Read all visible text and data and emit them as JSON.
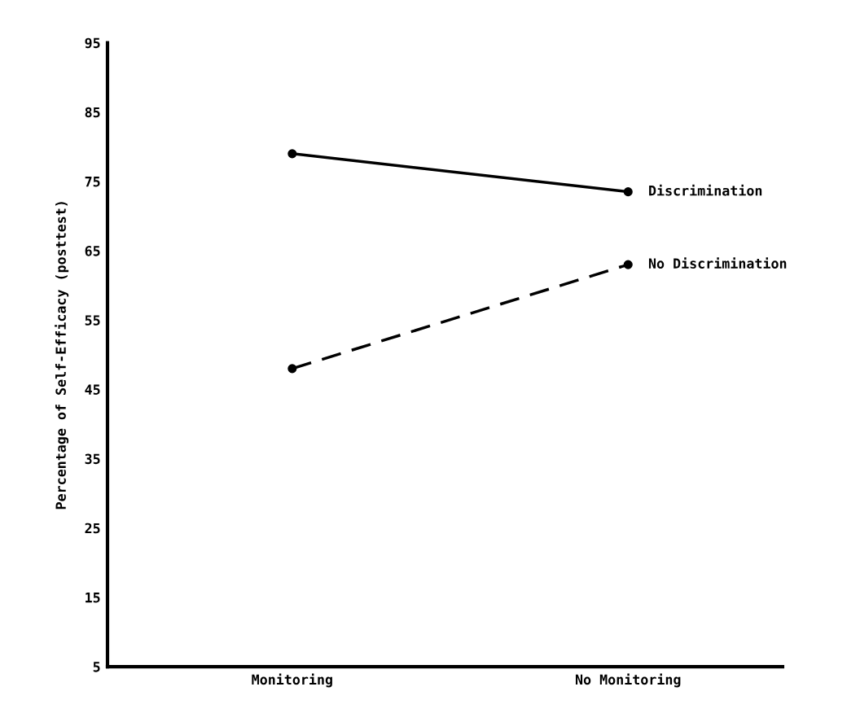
{
  "chart_data": {
    "type": "line",
    "ylabel": "Percentage of Self-Efficacy (posttest)",
    "categories": [
      "Monitoring",
      "No Monitoring"
    ],
    "series": [
      {
        "name": "Discrimination",
        "color": "#000000",
        "values": [
          79,
          73.5
        ],
        "line_style": "solid"
      },
      {
        "name": "No Discrimination",
        "color": "#000000",
        "values": [
          48,
          63
        ],
        "line_style": "dashed"
      }
    ],
    "ylim": [
      5,
      95
    ],
    "yticks": [
      5,
      15,
      25,
      35,
      45,
      55,
      65,
      75,
      85,
      95
    ],
    "marker": "circle",
    "grid": false,
    "legend": false
  }
}
